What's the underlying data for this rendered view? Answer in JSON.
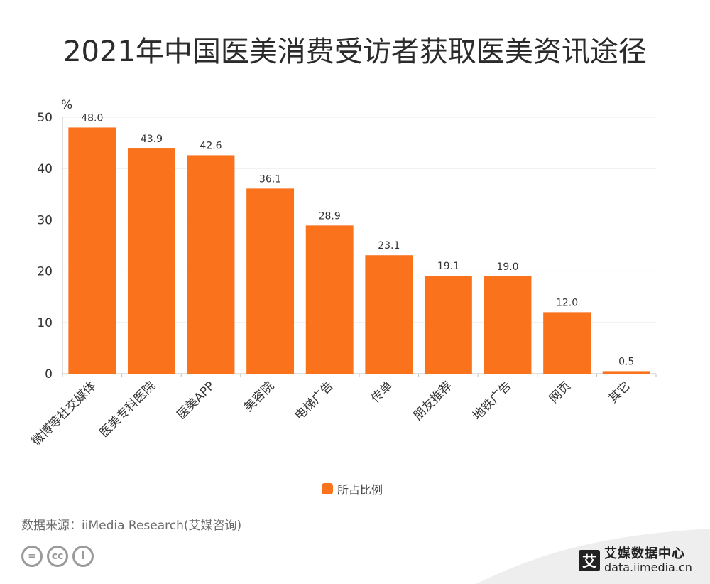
{
  "title": "2021年中国医美消费受访者获取医美资讯途径",
  "legend_label": "所占比例",
  "source": "数据来源：iiMedia Research(艾媒咨询)",
  "brand": {
    "name": "艾媒数据中心",
    "url": "data.iimedia.cn",
    "logo_char": "艾"
  },
  "license_icons": [
    "=",
    "cc",
    "i"
  ],
  "colors": {
    "bar": "#FA721B",
    "axis": "#bfbfbf",
    "grid": "#eeeeee",
    "text": "#333333"
  },
  "chart_data": {
    "type": "bar",
    "title": "2021年中国医美消费受访者获取医美资讯途径",
    "ylabel": "%",
    "ylim": [
      0,
      50
    ],
    "yticks": [
      0,
      10,
      20,
      30,
      40,
      50
    ],
    "categories": [
      "微博等社交媒体",
      "医美专科医院",
      "医美APP",
      "美容院",
      "电梯广告",
      "传单",
      "朋友推荐",
      "地铁广告",
      "网页",
      "其它"
    ],
    "series": [
      {
        "name": "所占比例",
        "values": [
          48.0,
          43.9,
          42.6,
          36.1,
          28.9,
          23.1,
          19.1,
          19.0,
          12.0,
          0.5
        ]
      }
    ],
    "grid": true,
    "legend_position": "bottom"
  }
}
